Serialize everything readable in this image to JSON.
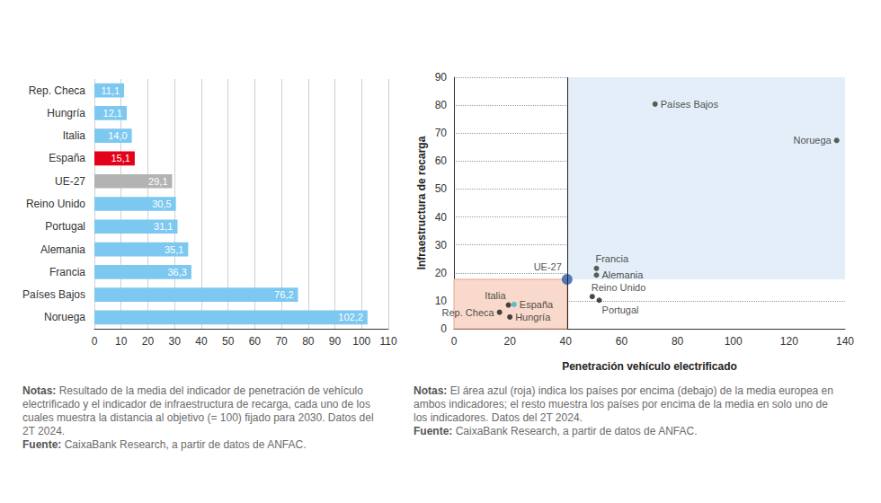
{
  "chart_data": [
    {
      "type": "bar",
      "orientation": "horizontal",
      "categories": [
        "Rep. Checa",
        "Hungría",
        "Italia",
        "España",
        "UE-27",
        "Reino Unido",
        "Portugal",
        "Alemania",
        "Francia",
        "Países Bajos",
        "Noruega"
      ],
      "values": [
        11.1,
        12.1,
        14.0,
        15.1,
        29.1,
        30.5,
        31.1,
        35.1,
        36.3,
        76.2,
        102.2
      ],
      "value_labels": [
        "11,1",
        "12,1",
        "14,0",
        "15,1",
        "29,1",
        "30,5",
        "31,1",
        "35,1",
        "36,3",
        "76,2",
        "102,2"
      ],
      "colors": [
        "#7cc8f0",
        "#7cc8f0",
        "#7cc8f0",
        "#e3001b",
        "#b3b3b3",
        "#7cc8f0",
        "#7cc8f0",
        "#7cc8f0",
        "#7cc8f0",
        "#7cc8f0",
        "#7cc8f0"
      ],
      "xlim": [
        0,
        110
      ],
      "xticks": [
        0,
        10,
        20,
        30,
        40,
        50,
        60,
        70,
        80,
        90,
        100,
        110
      ],
      "grid": true,
      "data_labels": true,
      "notes": {
        "heading": "Notas:",
        "text": "Resultado de la media del indicador de penetración de vehículo electrificado y el indicador de infraestructura de recarga, cada uno de los cuales muestra la distancia al objetivo (= 100) fijado para 2030. Datos del 2T 2024."
      },
      "source": {
        "heading": "Fuente:",
        "text": "CaixaBank Research, a partir de datos de ANFAC."
      }
    },
    {
      "type": "scatter",
      "labels": [
        "Países Bajos",
        "Noruega",
        "Francia",
        "Alemania",
        "UE-27",
        "Reino Unido",
        "Portugal",
        "Italia",
        "España",
        "Rep. Checa",
        "Hungría"
      ],
      "x": [
        72,
        137,
        51,
        51,
        40.5,
        49.5,
        52,
        19.5,
        21.5,
        16.3,
        20
      ],
      "y": [
        80.4,
        67.4,
        21.6,
        19.2,
        17.7,
        11.5,
        10.2,
        8.5,
        8.7,
        5.9,
        4.2
      ],
      "colors": [
        "#2e3a2c",
        "#2e3a2c",
        "#2e3a2c",
        "#2e3a2c",
        "#2a5caa",
        "#1a1a1a",
        "#1a1a1a",
        "#1a1a1a",
        "#38b3c9",
        "#1a1a1a",
        "#1a1a1a"
      ],
      "reference": "UE-27",
      "x_label": "Penetración vehículo electrificado",
      "y_label": "Infraestructura de recarga",
      "xlim": [
        0,
        140
      ],
      "xticks": [
        0,
        20,
        40,
        60,
        80,
        100,
        120,
        140
      ],
      "ylim": [
        0,
        90
      ],
      "yticks": [
        0,
        10,
        20,
        30,
        40,
        50,
        60,
        70,
        80,
        90
      ],
      "grid": true,
      "notes": {
        "heading": "Notas:",
        "text": "El área azul (roja) indica los países por encima (debajo) de la media europea en ambos indicadores; el resto muestra los países por encima de la media en solo uno de los indicadores. Datos del 2T 2024."
      },
      "source": {
        "heading": "Fuente:",
        "text": "CaixaBank Research, a partir de datos de ANFAC."
      }
    }
  ]
}
